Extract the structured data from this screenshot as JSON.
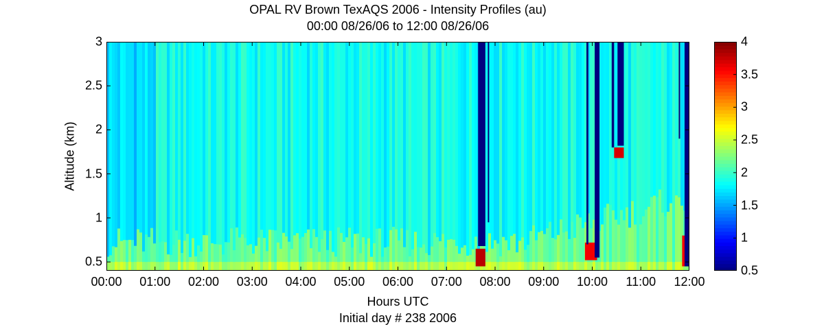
{
  "chart_data": {
    "type": "heatmap",
    "title": "OPAL RV Brown TexAQS 2006 - Intensity Profiles (au)",
    "subtitle": "00:00 08/26/06 to 12:00 08/26/06",
    "xlabel": "Hours UTC",
    "xlabel_note": "Initial day # 238  2006",
    "ylabel": "Altitude (km)",
    "x_ticks": [
      "00:00",
      "01:00",
      "02:00",
      "03:00",
      "04:00",
      "05:00",
      "06:00",
      "07:00",
      "08:00",
      "09:00",
      "10:00",
      "11:00",
      "12:00"
    ],
    "xlim_hours": [
      0,
      12
    ],
    "y_ticks": [
      "0.5",
      "1",
      "1.5",
      "2",
      "2.5",
      "3"
    ],
    "ylim": [
      0.4,
      3
    ],
    "colorbar_ticks": [
      "0.5",
      "1",
      "1.5",
      "2",
      "2.5",
      "3",
      "3.5",
      "4"
    ],
    "clim": [
      0.5,
      4
    ],
    "colormap": "jet",
    "grid": false,
    "background_intensity": 1.85,
    "surface_layer_intensity": 2.4,
    "dropouts": [
      {
        "start_hour": 7.65,
        "end_hour": 7.8,
        "bottom_km": 0.68,
        "top_km": 3.0
      },
      {
        "start_hour": 7.85,
        "end_hour": 7.87,
        "bottom_km": 0.95,
        "top_km": 3.0
      },
      {
        "start_hour": 9.88,
        "end_hour": 9.92,
        "bottom_km": 0.7,
        "top_km": 3.0
      },
      {
        "start_hour": 10.05,
        "end_hour": 10.15,
        "bottom_km": 0.55,
        "top_km": 3.0
      },
      {
        "start_hour": 10.4,
        "end_hour": 10.45,
        "bottom_km": 1.8,
        "top_km": 3.0
      },
      {
        "start_hour": 10.52,
        "end_hour": 10.65,
        "bottom_km": 1.82,
        "top_km": 3.0
      },
      {
        "start_hour": 11.78,
        "end_hour": 11.8,
        "bottom_km": 1.9,
        "top_km": 3.0
      },
      {
        "start_hour": 11.9,
        "end_hour": 12.0,
        "bottom_km": 0.45,
        "top_km": 3.0
      }
    ],
    "high_intensity_regions": [
      {
        "start_hour": 7.6,
        "end_hour": 7.8,
        "bottom_km": 0.45,
        "top_km": 0.65,
        "value": 3.8
      },
      {
        "start_hour": 9.85,
        "end_hour": 10.1,
        "bottom_km": 0.52,
        "top_km": 0.72,
        "value": 3.6
      },
      {
        "start_hour": 10.45,
        "end_hour": 10.65,
        "bottom_km": 1.68,
        "top_km": 1.8,
        "value": 3.7
      },
      {
        "start_hour": 11.85,
        "end_hour": 12.0,
        "bottom_km": 0.45,
        "top_km": 0.8,
        "value": 3.6
      }
    ]
  }
}
